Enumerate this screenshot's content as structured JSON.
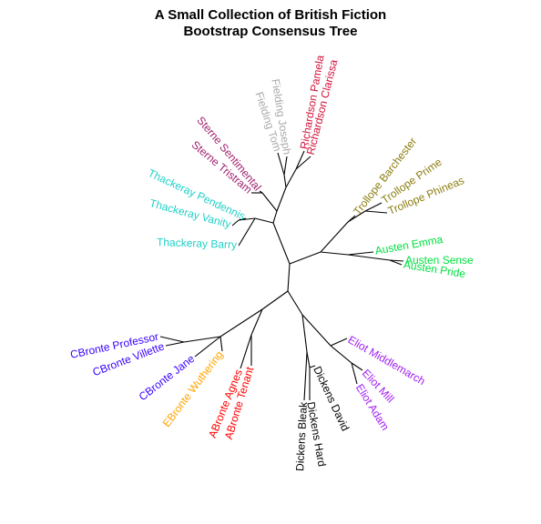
{
  "title_line1": "A Small Collection of British Fiction",
  "title_line2": "Bootstrap Consensus Tree",
  "colors": {
    "Richardson": "#d2143c",
    "Fielding": "#a9a9a9",
    "Sterne": "#a0206e",
    "Thackeray": "#22d0c8",
    "Trollope": "#8b7d10",
    "Austen": "#00e040",
    "Eliot": "#a020f0",
    "Dickens": "#000000",
    "ABronte": "#ff0000",
    "EBronte": "#ffa500",
    "CBronte": "#3a00ff"
  },
  "leaves": [
    {
      "label": "Richardson Pamela",
      "group": "Richardson"
    },
    {
      "label": "Richardson Clarissa",
      "group": "Richardson"
    },
    {
      "label": "Fielding Joseph",
      "group": "Fielding"
    },
    {
      "label": "Fielding Tom",
      "group": "Fielding"
    },
    {
      "label": "Sterne Sentimental",
      "group": "Sterne"
    },
    {
      "label": "Sterne Tristram",
      "group": "Sterne"
    },
    {
      "label": "Thackeray Pendennis",
      "group": "Thackeray"
    },
    {
      "label": "Thackeray Vanity",
      "group": "Thackeray"
    },
    {
      "label": "Thackeray Barry",
      "group": "Thackeray"
    },
    {
      "label": "Trollope Barchester",
      "group": "Trollope"
    },
    {
      "label": "Trollope Prime",
      "group": "Trollope"
    },
    {
      "label": "Trollope Phineas",
      "group": "Trollope"
    },
    {
      "label": "Austen Emma",
      "group": "Austen"
    },
    {
      "label": "Austen Sense",
      "group": "Austen"
    },
    {
      "label": "Austen Pride",
      "group": "Austen"
    },
    {
      "label": "Eliot Middlemarch",
      "group": "Eliot"
    },
    {
      "label": "Eliot Mill",
      "group": "Eliot"
    },
    {
      "label": "Eliot Adam",
      "group": "Eliot"
    },
    {
      "label": "Dickens David",
      "group": "Dickens"
    },
    {
      "label": "Dickens Hard",
      "group": "Dickens"
    },
    {
      "label": "Dickens Bleak",
      "group": "Dickens"
    },
    {
      "label": "ABronte Agnes",
      "group": "ABronte"
    },
    {
      "label": "ABronte Tenant",
      "group": "ABronte"
    },
    {
      "label": "EBronte Wuthering",
      "group": "EBronte"
    },
    {
      "label": "CBronte Professor",
      "group": "CBronte"
    },
    {
      "label": "CBronte Villette",
      "group": "CBronte"
    },
    {
      "label": "CBronte Jane",
      "group": "CBronte"
    }
  ]
}
